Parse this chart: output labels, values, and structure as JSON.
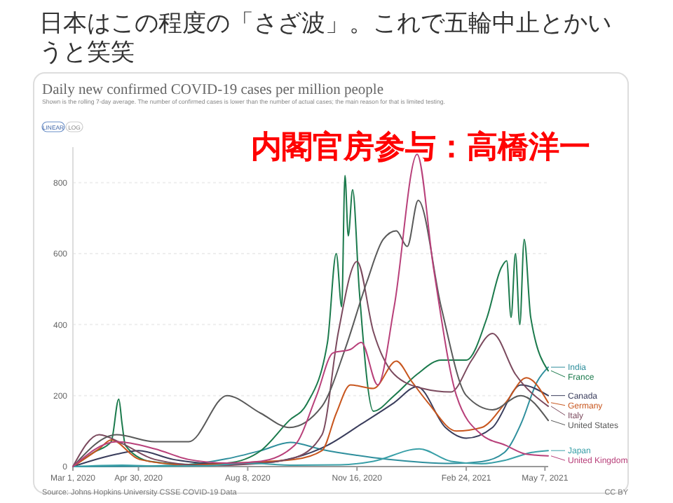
{
  "chart_data": {
    "type": "line",
    "title": "Daily new confirmed COVID-19 cases per million people",
    "subtitle": "Shown is the rolling 7-day average. The number of confirmed cases is lower than the number of actual cases; the main reason for that is limited testing.",
    "annotations": [
      "日本はこの程度の「さざ波」。これで五輪中止とかいうと笑笑",
      "内閣官房参与：高橋洋一",
      "LINEAR",
      "LOG",
      "Source: Johns Hopkins University CSSE COVID-19 Data",
      "CC BY"
    ],
    "xlim": [
      "2020-03-01",
      "2021-05-10"
    ],
    "ylim": [
      0,
      900
    ],
    "xticks": [
      {
        "value": "2020-03-01",
        "label": "Mar 1, 2020"
      },
      {
        "value": "2020-04-30",
        "label": "Apr 30, 2020"
      },
      {
        "value": "2020-08-08",
        "label": "Aug 8, 2020"
      },
      {
        "value": "2020-11-16",
        "label": "Nov 16, 2020"
      },
      {
        "value": "2021-02-24",
        "label": "Feb 24, 2021"
      },
      {
        "value": "2021-05-07",
        "label": "May 7, 2021"
      }
    ],
    "yticks": [
      0,
      200,
      400,
      600,
      800
    ],
    "grid": "y",
    "legend": "right",
    "marker": "none",
    "line_style": "solid",
    "series": [
      {
        "name": "India",
        "color": "#2f8f9d",
        "x": [
          "2020-03-01",
          "2020-05-01",
          "2020-06-15",
          "2020-07-20",
          "2020-08-20",
          "2020-09-16",
          "2020-10-15",
          "2020-11-15",
          "2020-12-15",
          "2021-01-15",
          "2021-02-10",
          "2021-03-10",
          "2021-03-31",
          "2021-04-15",
          "2021-04-30",
          "2021-05-10"
        ],
        "values": [
          0,
          1,
          6,
          22,
          45,
          68,
          48,
          32,
          20,
          12,
          9,
          14,
          40,
          120,
          240,
          280
        ]
      },
      {
        "name": "France",
        "color": "#1b7a4c",
        "x": [
          "2020-03-01",
          "2020-03-20",
          "2020-04-05",
          "2020-04-12",
          "2020-04-15",
          "2020-04-18",
          "2020-05-10",
          "2020-06-15",
          "2020-07-20",
          "2020-08-20",
          "2020-09-15",
          "2020-10-01",
          "2020-10-20",
          "2020-10-28",
          "2020-11-02",
          "2020-11-05",
          "2020-11-08",
          "2020-11-12",
          "2020-11-18",
          "2020-12-01",
          "2020-12-20",
          "2021-01-10",
          "2021-02-01",
          "2021-02-24",
          "2021-03-15",
          "2021-03-28",
          "2021-04-02",
          "2021-04-06",
          "2021-04-10",
          "2021-04-14",
          "2021-04-18",
          "2021-04-24",
          "2021-05-10"
        ],
        "values": [
          0,
          40,
          70,
          190,
          120,
          60,
          15,
          6,
          10,
          45,
          130,
          176,
          350,
          600,
          450,
          820,
          650,
          780,
          500,
          156,
          200,
          260,
          300,
          300,
          420,
          560,
          580,
          420,
          600,
          400,
          640,
          420,
          270
        ]
      },
      {
        "name": "Canada",
        "color": "#3a3d5c",
        "x": [
          "2020-03-01",
          "2020-04-10",
          "2020-04-30",
          "2020-06-01",
          "2020-07-15",
          "2020-08-20",
          "2020-09-20",
          "2020-10-20",
          "2020-11-20",
          "2020-12-20",
          "2021-01-10",
          "2021-02-05",
          "2021-02-24",
          "2021-03-20",
          "2021-04-15",
          "2021-05-10"
        ],
        "values": [
          0,
          35,
          45,
          20,
          8,
          10,
          25,
          60,
          120,
          180,
          225,
          110,
          80,
          110,
          230,
          200
        ]
      },
      {
        "name": "Germany",
        "color": "#c8561e",
        "x": [
          "2020-03-01",
          "2020-03-25",
          "2020-04-05",
          "2020-05-01",
          "2020-06-15",
          "2020-08-10",
          "2020-09-20",
          "2020-10-15",
          "2020-10-28",
          "2020-11-10",
          "2020-12-01",
          "2020-12-22",
          "2021-01-05",
          "2021-01-20",
          "2021-02-15",
          "2021-03-10",
          "2021-04-01",
          "2021-04-20",
          "2021-05-10"
        ],
        "values": [
          0,
          50,
          75,
          20,
          5,
          12,
          20,
          45,
          150,
          230,
          220,
          297,
          240,
          180,
          100,
          110,
          180,
          250,
          180
        ]
      },
      {
        "name": "Italy",
        "color": "#7b4a5e",
        "x": [
          "2020-03-01",
          "2020-03-25",
          "2020-04-15",
          "2020-05-15",
          "2020-07-01",
          "2020-08-15",
          "2020-09-20",
          "2020-10-15",
          "2020-10-30",
          "2020-11-16",
          "2020-12-01",
          "2020-12-20",
          "2021-01-15",
          "2021-02-10",
          "2021-03-01",
          "2021-03-20",
          "2021-04-10",
          "2021-05-10"
        ],
        "values": [
          0,
          90,
          65,
          20,
          3,
          8,
          25,
          90,
          380,
          578,
          380,
          260,
          220,
          210,
          300,
          375,
          260,
          170
        ]
      },
      {
        "name": "United States",
        "color": "#5a5a5a",
        "x": [
          "2020-03-01",
          "2020-04-10",
          "2020-05-15",
          "2020-06-15",
          "2020-07-20",
          "2020-08-20",
          "2020-09-15",
          "2020-10-15",
          "2020-11-05",
          "2020-11-25",
          "2020-12-10",
          "2020-12-22",
          "2021-01-01",
          "2021-01-11",
          "2021-02-01",
          "2021-02-24",
          "2021-03-20",
          "2021-04-15",
          "2021-05-10"
        ],
        "values": [
          0,
          90,
          70,
          70,
          200,
          150,
          110,
          170,
          330,
          520,
          640,
          664,
          620,
          750,
          450,
          200,
          160,
          200,
          130
        ]
      },
      {
        "name": "Japan",
        "color": "#3aa0a8",
        "x": [
          "2020-03-01",
          "2020-04-15",
          "2020-05-20",
          "2020-07-01",
          "2020-08-05",
          "2020-09-20",
          "2020-11-01",
          "2020-12-01",
          "2021-01-12",
          "2021-02-10",
          "2021-03-10",
          "2021-04-01",
          "2021-04-25",
          "2021-05-10"
        ],
        "values": [
          0,
          4,
          1,
          2,
          10,
          4,
          5,
          15,
          50,
          15,
          8,
          18,
          40,
          45
        ]
      },
      {
        "name": "United Kingdom",
        "color": "#b8407a",
        "x": [
          "2020-03-01",
          "2020-04-10",
          "2020-05-15",
          "2020-06-15",
          "2020-07-20",
          "2020-08-20",
          "2020-09-20",
          "2020-10-10",
          "2020-10-25",
          "2020-11-10",
          "2020-11-20",
          "2020-12-05",
          "2020-12-20",
          "2021-01-10",
          "2021-01-25",
          "2021-02-15",
          "2021-03-10",
          "2021-04-01",
          "2021-04-20",
          "2021-05-10"
        ],
        "values": [
          0,
          70,
          50,
          20,
          10,
          15,
          60,
          200,
          320,
          330,
          350,
          230,
          450,
          880,
          560,
          200,
          90,
          60,
          35,
          30
        ]
      }
    ]
  }
}
